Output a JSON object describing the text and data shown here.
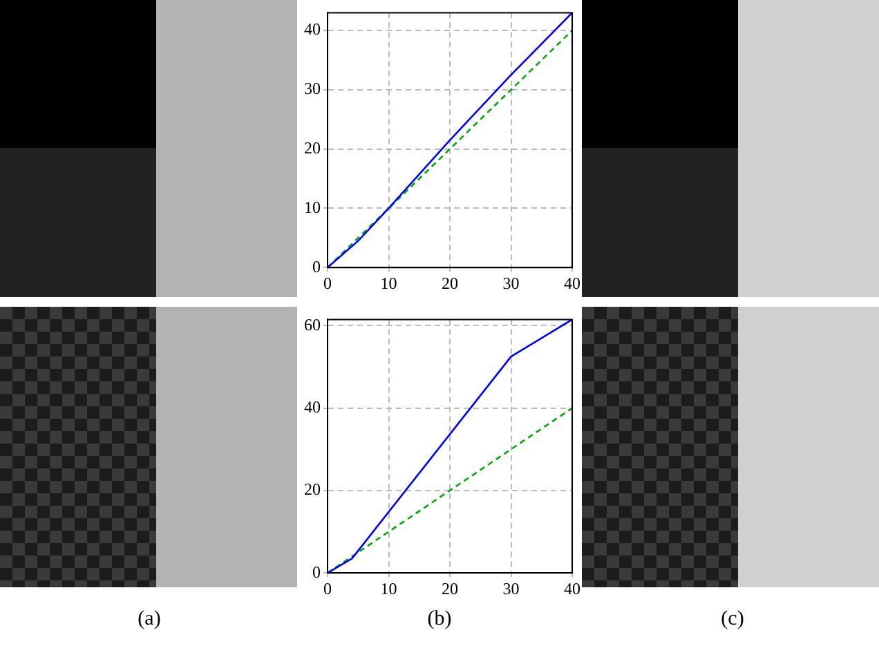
{
  "chart_data": [
    {
      "type": "line",
      "xlim": [
        0,
        40
      ],
      "xticks": [
        0,
        10,
        20,
        30,
        40
      ],
      "ylim": [
        0,
        43
      ],
      "yticks": [
        0,
        10,
        20,
        30,
        40
      ],
      "grid": true,
      "marker": "none",
      "series": [
        {
          "color": "#0000ff",
          "line_style": "solid",
          "x": [
            0,
            5,
            10,
            20,
            30,
            40
          ],
          "values": [
            0,
            4.5,
            10,
            21.5,
            32.5,
            43
          ]
        },
        {
          "color": "#00aa00",
          "line_style": "dashed",
          "x": [
            0,
            40
          ],
          "values": [
            0,
            40
          ]
        }
      ]
    },
    {
      "type": "line",
      "xlim": [
        0,
        40
      ],
      "xticks": [
        0,
        10,
        20,
        30,
        40
      ],
      "ylim": [
        0,
        61.5
      ],
      "yticks": [
        0,
        20,
        40,
        60
      ],
      "grid": true,
      "marker": "none",
      "annotations": [
        "(a)",
        "(b)",
        "(c)"
      ],
      "series": [
        {
          "color": "#0000ff",
          "line_style": "solid",
          "x": [
            0,
            4,
            30,
            40
          ],
          "values": [
            0,
            3.5,
            52.5,
            61.5
          ]
        },
        {
          "color": "#00aa00",
          "line_style": "dashed",
          "x": [
            0,
            40
          ],
          "values": [
            0,
            40
          ]
        }
      ]
    }
  ]
}
